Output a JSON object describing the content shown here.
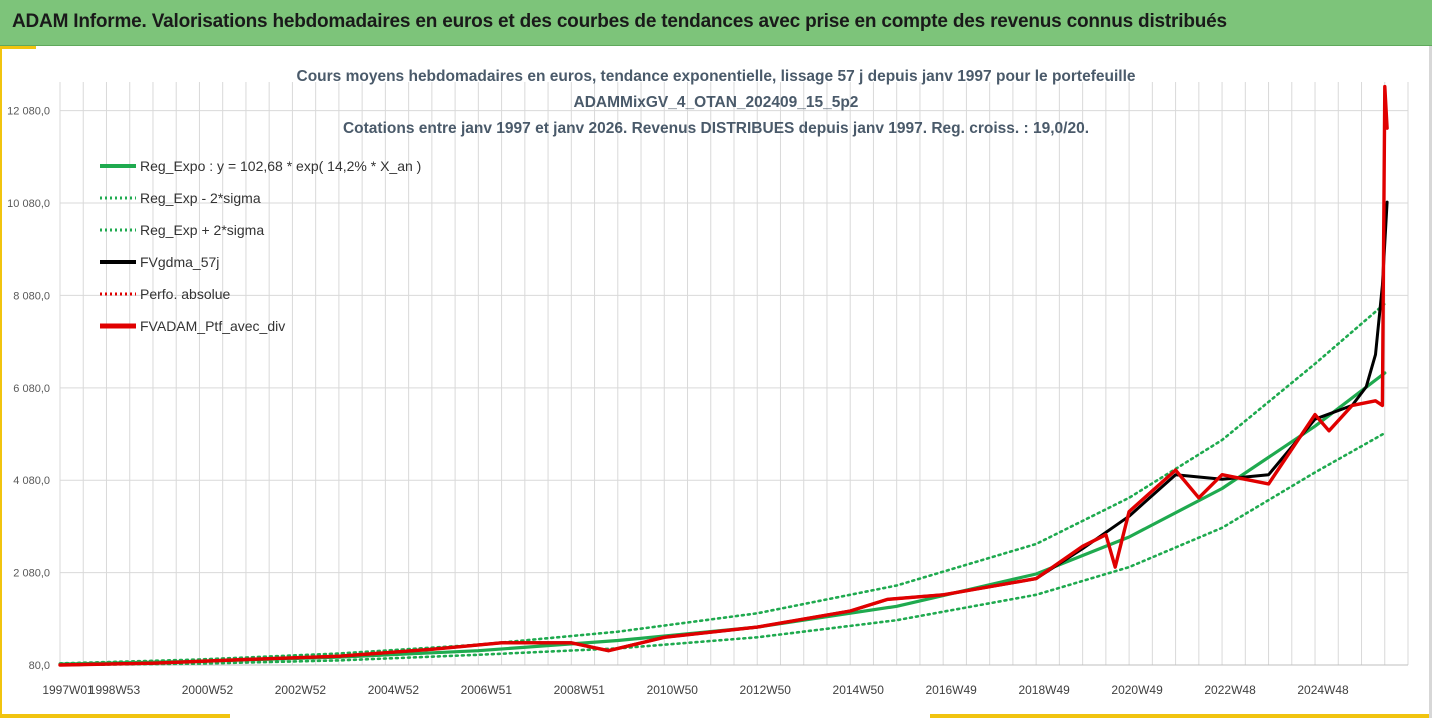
{
  "banner": {
    "title": "ADAM Informe. Valorisations hebdomadaires en euros et des courbes de tendances avec prise en compte des revenus connus distribués"
  },
  "chart_data": {
    "type": "line",
    "title_lines": [
      "Cours moyens hebdomadaires  en euros, tendance exponentielle, lissage 57 j depuis janv 1997 pour le portefeuille",
      "ADAMMixGV_4_OTAN_202409_15_5p2",
      "Cotations entre janv 1997 et janv 2026. Revenus DISTRIBUES depuis janv 1997. Reg. croiss. : 19,0/20."
    ],
    "xlabel": "",
    "ylabel": "",
    "x_range": [
      1997.0,
      2026.0
    ],
    "ylim": [
      80,
      12700
    ],
    "y_ticks": [
      {
        "value": 80,
        "label": "80,0"
      },
      {
        "value": 2080,
        "label": "2 080,0"
      },
      {
        "value": 4080,
        "label": "4 080,0"
      },
      {
        "value": 6080,
        "label": "6 080,0"
      },
      {
        "value": 8080,
        "label": "8 080,0"
      },
      {
        "value": 10080,
        "label": "10 080,0"
      },
      {
        "value": 12080,
        "label": "12 080,0"
      }
    ],
    "x_ticks": [
      {
        "value": 1997.0,
        "label": "1997W01"
      },
      {
        "value": 1998.0,
        "label": "1998W53"
      },
      {
        "value": 2000.0,
        "label": "2000W52"
      },
      {
        "value": 2002.0,
        "label": "2002W52"
      },
      {
        "value": 2004.0,
        "label": "2004W52"
      },
      {
        "value": 2006.0,
        "label": "2006W51"
      },
      {
        "value": 2008.0,
        "label": "2008W51"
      },
      {
        "value": 2010.0,
        "label": "2010W50"
      },
      {
        "value": 2012.0,
        "label": "2012W50"
      },
      {
        "value": 2014.0,
        "label": "2014W50"
      },
      {
        "value": 2016.0,
        "label": "2016W49"
      },
      {
        "value": 2018.0,
        "label": "2018W49"
      },
      {
        "value": 2020.0,
        "label": "2020W49"
      },
      {
        "value": 2022.0,
        "label": "2022W48"
      },
      {
        "value": 2024.0,
        "label": "2024W48"
      }
    ],
    "grid": true,
    "legend_position": "top-left",
    "series": [
      {
        "name": "Reg_Expo : y = 102,68 * exp( 14,2% *  X_an )",
        "color": "#1faa4f",
        "style": "solid",
        "x": [
          1997.0,
          2000.0,
          2003.0,
          2006.0,
          2009.0,
          2012.0,
          2015.0,
          2018.0,
          2020.0,
          2022.0,
          2024.0,
          2025.5
        ],
        "y": [
          100,
          160,
          250,
          390,
          610,
          900,
          1350,
          2050,
          2850,
          3900,
          5250,
          6400
        ]
      },
      {
        "name": "Reg_Exp - 2*sigma",
        "color": "#1faa4f",
        "style": "dotted",
        "x": [
          1997.0,
          2000.0,
          2003.0,
          2006.0,
          2009.0,
          2012.0,
          2015.0,
          2018.0,
          2020.0,
          2022.0,
          2024.0,
          2025.5
        ],
        "y": [
          80,
          110,
          180,
          300,
          440,
          680,
          1050,
          1600,
          2200,
          3050,
          4250,
          5100
        ]
      },
      {
        "name": "Reg_Exp + 2*sigma",
        "color": "#1faa4f",
        "style": "dotted",
        "x": [
          1997.0,
          2000.0,
          2003.0,
          2006.0,
          2009.0,
          2012.0,
          2015.0,
          2018.0,
          2020.0,
          2022.0,
          2024.0,
          2025.5
        ],
        "y": [
          115,
          200,
          330,
          520,
          800,
          1200,
          1800,
          2700,
          3700,
          4950,
          6600,
          7900
        ]
      },
      {
        "name": "FVgdma_57j",
        "color": "#000000",
        "style": "solid",
        "x": [
          1997.0,
          1999.0,
          2001.0,
          2003.0,
          2005.0,
          2006.5,
          2008.0,
          2008.8,
          2010.0,
          2012.0,
          2014.0,
          2014.8,
          2016.0,
          2018.0,
          2019.0,
          2020.0,
          2021.0,
          2022.0,
          2023.0,
          2024.0,
          2024.8,
          2025.1,
          2025.3,
          2025.45,
          2025.55
        ],
        "y": [
          80,
          120,
          200,
          270,
          420,
          560,
          560,
          390,
          680,
          900,
          1250,
          1500,
          1600,
          1950,
          2600,
          3300,
          4200,
          4100,
          4200,
          5400,
          5700,
          6100,
          6800,
          8300,
          10100
        ]
      },
      {
        "name": "Perfo. absolue",
        "color": "#e00000",
        "style": "dotted",
        "x": [
          1997.0,
          1999.0,
          2001.0,
          2003.0,
          2005.0,
          2006.5,
          2008.0,
          2008.8,
          2010.0,
          2012.0,
          2014.0,
          2014.8,
          2016.0,
          2018.0,
          2019.0,
          2019.5,
          2019.7,
          2020.0,
          2021.0,
          2021.5,
          2022.0,
          2023.0,
          2024.0,
          2024.3,
          2024.8,
          2025.3,
          2025.45,
          2025.5,
          2025.55
        ],
        "y": [
          80,
          120,
          200,
          270,
          420,
          560,
          560,
          390,
          680,
          900,
          1250,
          1500,
          1600,
          1950,
          2650,
          2900,
          2200,
          3400,
          4300,
          3700,
          4200,
          4000,
          5500,
          5150,
          5700,
          5800,
          5700,
          12600,
          11700
        ]
      },
      {
        "name": "FVADAM_Ptf_avec_div",
        "color": "#e00000",
        "style": "solid",
        "x": [
          1997.0,
          1999.0,
          2001.0,
          2003.0,
          2005.0,
          2006.5,
          2008.0,
          2008.8,
          2010.0,
          2012.0,
          2014.0,
          2014.8,
          2016.0,
          2018.0,
          2019.0,
          2019.5,
          2019.7,
          2020.0,
          2021.0,
          2021.5,
          2022.0,
          2023.0,
          2024.0,
          2024.3,
          2024.8,
          2025.3,
          2025.45,
          2025.5,
          2025.55
        ],
        "y": [
          80,
          120,
          200,
          270,
          420,
          560,
          560,
          390,
          680,
          900,
          1250,
          1500,
          1600,
          1950,
          2650,
          2900,
          2200,
          3400,
          4300,
          3700,
          4200,
          4000,
          5500,
          5150,
          5700,
          5800,
          5700,
          12600,
          11700
        ]
      }
    ]
  }
}
